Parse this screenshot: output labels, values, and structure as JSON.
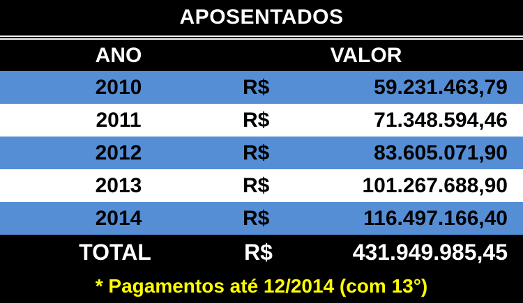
{
  "title": "APOSENTADOS",
  "headers": {
    "year": "ANO",
    "value": "VALOR"
  },
  "colors": {
    "band": "#558ed5",
    "alt": "#ffffff",
    "background": "#000000",
    "note": "#ffff00"
  },
  "rows": [
    {
      "year": "2010",
      "currency": "R$",
      "value": "59.231.463,79"
    },
    {
      "year": "2011",
      "currency": "R$",
      "value": "71.348.594,46"
    },
    {
      "year": "2012",
      "currency": "R$",
      "value": "83.605.071,90"
    },
    {
      "year": "2013",
      "currency": "R$",
      "value": "101.267.688,90"
    },
    {
      "year": "2014",
      "currency": "R$",
      "value": "116.497.166,40"
    }
  ],
  "total": {
    "label": "TOTAL",
    "currency": "R$",
    "value": "431.949.985,45"
  },
  "note": "* Pagamentos até 12/2014 (com 13°)"
}
